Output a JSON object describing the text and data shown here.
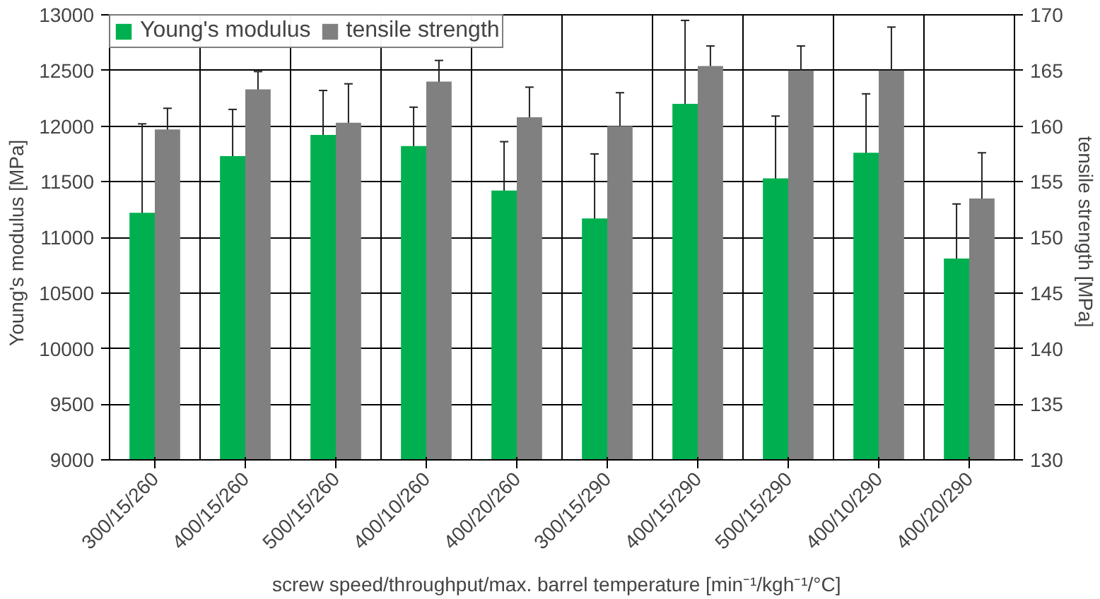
{
  "chart_data": {
    "type": "bar",
    "xlabel": "screw speed/throughput/max. barrel temperature   [min⁻¹/kgh⁻¹/°C]",
    "ylabel": "Young's modulus   [MPa]",
    "y2label": "tensile strength   [MPa]",
    "categories": [
      "300/15/260",
      "400/15/260",
      "500/15/260",
      "400/10/260",
      "400/20/260",
      "300/15/290",
      "400/15/290",
      "500/15/290",
      "400/10/290",
      "400/20/290"
    ],
    "series": [
      {
        "name": "Young's modulus",
        "color": "#00b050",
        "values": [
          11220,
          11730,
          11920,
          11820,
          11420,
          11170,
          12200,
          11530,
          11760,
          10810
        ],
        "errors": [
          800,
          420,
          400,
          350,
          440,
          580,
          750,
          560,
          530,
          490
        ]
      },
      {
        "name": "tensile strength",
        "color": "#808080",
        "axis": "y2",
        "values": [
          159.7,
          163.3,
          160.3,
          164.0,
          160.8,
          160.0,
          165.4,
          165.0,
          165.0,
          153.5
        ],
        "errors": [
          1.9,
          1.6,
          3.5,
          1.9,
          2.7,
          3.0,
          1.8,
          2.2,
          3.9,
          4.1
        ]
      }
    ],
    "ylim": [
      9000,
      13000
    ],
    "yticks": [
      9000,
      9500,
      10000,
      10500,
      11000,
      11500,
      12000,
      12500,
      13000
    ],
    "y2lim": [
      130,
      170
    ],
    "y2ticks": [
      130,
      135,
      140,
      145,
      150,
      155,
      160,
      165,
      170
    ],
    "grid": true,
    "legend": "top left"
  }
}
